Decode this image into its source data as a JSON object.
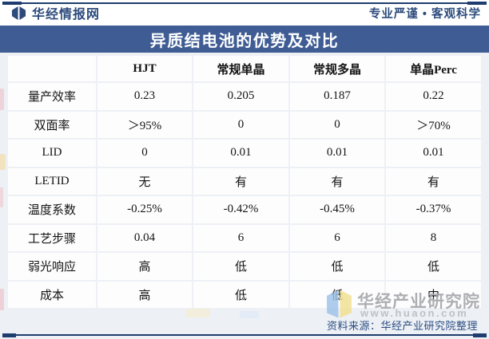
{
  "header": {
    "brand": "华经情报网",
    "tagline": "专业严谨 • 客观科学",
    "title": "异质结电池的优势及对比"
  },
  "chart_data": {
    "type": "table",
    "title": "异质结电池的优势及对比",
    "columns": [
      "",
      "HJT",
      "常规单晶",
      "常规多晶",
      "单晶Perc"
    ],
    "rows": [
      [
        "量产效率",
        "0.23",
        "0.205",
        "0.187",
        "0.22"
      ],
      [
        "双面率",
        "＞95%",
        "0",
        "0",
        "＞70%"
      ],
      [
        "LID",
        "0",
        "0.01",
        "0.01",
        "0.01"
      ],
      [
        "LETID",
        "无",
        "有",
        "有",
        "有"
      ],
      [
        "温度系数",
        "-0.25%",
        "-0.42%",
        "-0.45%",
        "-0.37%"
      ],
      [
        "工艺步骤",
        "0.04",
        "6",
        "6",
        "8"
      ],
      [
        "弱光响应",
        "高",
        "低",
        "低",
        "低"
      ],
      [
        "成本",
        "高",
        "低",
        "低",
        "中"
      ]
    ]
  },
  "watermark": {
    "name": "华经产业研究院",
    "url": "www.huaon.com"
  },
  "footer": {
    "source": "资料来源：华经产业研究院整理"
  },
  "colors": {
    "title_bar_blue": "#3f5d94",
    "accent_navy": "#1e3c6e",
    "brand_text": "#2c4b7c",
    "page_background": "#edf0f5",
    "cell_background": "#fdfdfe",
    "table_text": "#141414",
    "watermark_gray": "#a6a7ab",
    "watermark_url_gray": "#b7bcc4",
    "book_icon_blue": "#9cc1e8",
    "book_icon_yellow": "#f1e193"
  }
}
